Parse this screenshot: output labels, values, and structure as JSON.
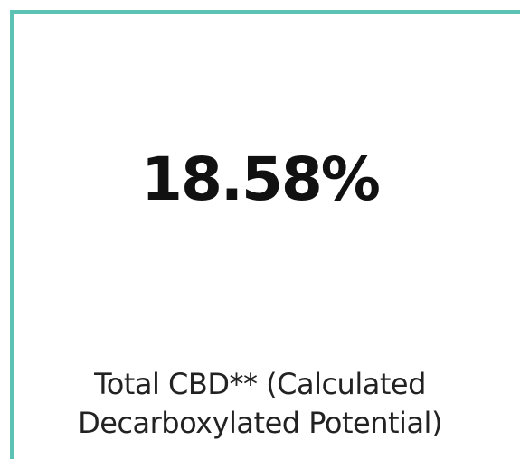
{
  "card": {
    "value": "18.58%",
    "label_line1": "Total CBD** (Calculated",
    "label_line2": "Decarboxylated Potential)",
    "border_color": "#5cc2b3"
  }
}
